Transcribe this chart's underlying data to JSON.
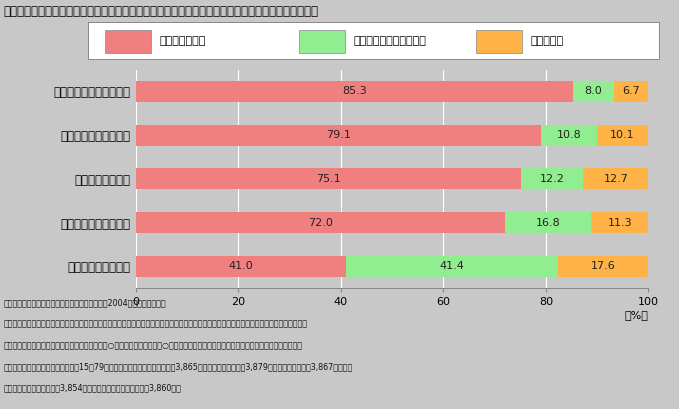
{
  "title": "第３－１－６図　防犯・防災、介護・福祉などは地域の人が中心となって取り組む必要を感じている",
  "categories": [
    "防犯や防災にむけた対策",
    "高齢者への介護、福祉",
    "少年の健全な育成",
    "身のまわりの環境保全",
    "祭りなどのイベント"
  ],
  "values_needed": [
    85.3,
    79.1,
    75.1,
    72.0,
    41.0
  ],
  "values_not_needed": [
    8.0,
    10.8,
    12.2,
    16.8,
    41.4
  ],
  "values_unknown": [
    6.7,
    10.1,
    12.7,
    11.3,
    17.6
  ],
  "color_needed": "#F08080",
  "color_not_needed": "#90EE90",
  "color_unknown": "#FFB347",
  "legend_needed": "必要だと感じる",
  "legend_not_needed": "特に必要はないと感じる",
  "legend_unknown": "わからない",
  "bg_color": "#C8C8C8",
  "xlabel": "100（％）",
  "note_line1": "（備考）　１．内閣府「国民生活選好度調査」（2004年）により作成。",
  "note_line2": "　　　　　２．「あなたは、次の項目についてあなたの住んでいる地域の人が中心となって積極的に取り組むことが必要だと感じますか。それ",
  "note_line3": "　　　　　　　ぞれについて、あてはまるものに○をお付けください。（○はそれぞれ１つずつ）」という問に対して回答した人の割合。",
  "note_line4": "　　　　　３．回答した人は全国の15～79歳までの男女、「防犯や防災」が3,865人、「介護、福祉」が3,879人、「健全育成」が3,867人、「環",
  "note_line5": "　　　　　　　境保全」が3,854人、「祭りなどのイベント」が3,860人。"
}
